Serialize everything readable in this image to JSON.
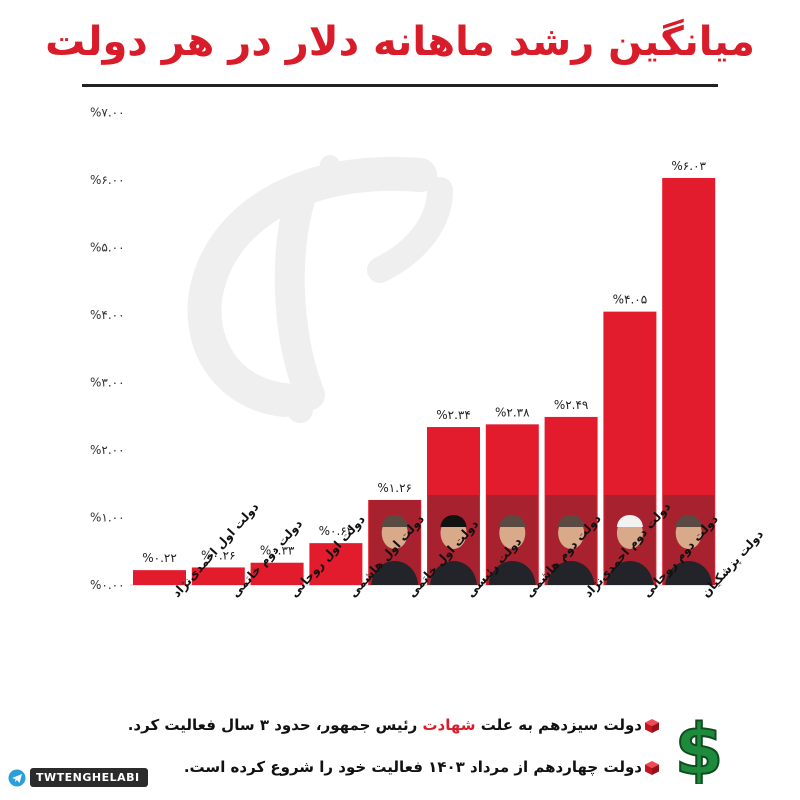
{
  "header": {
    "title": "میانگین رشد ماهانه دلار در هر دولت"
  },
  "chart_data": {
    "type": "bar",
    "title": "میانگین رشد ماهانه دلار در هر دولت",
    "xlabel": "",
    "ylabel": "",
    "ylim": [
      0,
      7
    ],
    "y_ticks": [
      0,
      1,
      2,
      3,
      4,
      5,
      6,
      7
    ],
    "y_tick_labels": [
      "%۰.۰۰",
      "%۱.۰۰",
      "%۲.۰۰",
      "%۳.۰۰",
      "%۴.۰۰",
      "%۵.۰۰",
      "%۶.۰۰",
      "%۷.۰۰"
    ],
    "grid": false,
    "bar_color": "#e21b2d",
    "categories": [
      "دولت اول احمدی‌نژاد",
      "دولت دوم خاتمی",
      "دولت اول روحانی",
      "دولت اول هاشمی",
      "دولت اول خاتمی",
      "دولت رئیسی",
      "دولت دوم هاشمی",
      "دولت دوم احمدی‌نژاد",
      "دولت دوم روحانی",
      "دولت پزشکیان"
    ],
    "values": [
      0.22,
      0.26,
      0.33,
      0.62,
      1.26,
      2.34,
      2.38,
      2.49,
      4.05,
      6.03
    ],
    "value_labels": [
      "%۰.۲۲",
      "%۰.۲۶",
      "%۰.۳۳",
      "%۰.۶۲",
      "%۱.۲۶",
      "%۲.۳۴",
      "%۲.۳۸",
      "%۲.۴۹",
      "%۴.۰۵",
      "%۶.۰۳"
    ],
    "portrait_on_bar": [
      false,
      false,
      false,
      false,
      true,
      true,
      true,
      true,
      true,
      true
    ]
  },
  "notes": {
    "line1_before": "دولت سیزدهم به علت ",
    "line1_highlight": "شهادت",
    "line1_after": " رئیس جمهور، حدود ۳ سال فعالیت کرد.",
    "line2": "دولت چهاردهم از مرداد ۱۴۰۳ فعالیت خود را شروع کرده است."
  },
  "footer": {
    "brand": "TWTENGHELABI"
  },
  "icons": {
    "bullet": "red-cube-icon",
    "money": "dollar-sign-icon",
    "channel": "telegram-icon"
  },
  "colors": {
    "accent": "#d91c2a",
    "bar": "#e21b2d",
    "dollar": "#1e8a3c"
  }
}
